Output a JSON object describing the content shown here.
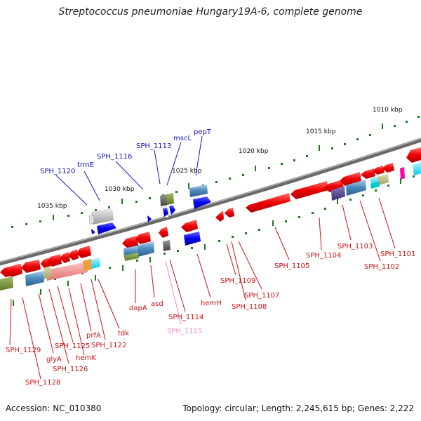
{
  "title": "Streptococcus pneumoniae Hungary19A-6, complete genome",
  "footer": {
    "accession": "Accession: NC_010380",
    "topology": "Topology: circular; Length: 2,245,615 bp; Genes: 2,222"
  },
  "colors": {
    "forward_label": "#1515c8",
    "reverse_label": "#cc1111",
    "pink_label": "#ee88cc",
    "backbone": "#6a6a6a",
    "tick": "#1a7a1a"
  },
  "kbp_markers": [
    "1010 kbp",
    "1015 kbp",
    "1020 kbp",
    "1025 kbp",
    "1030 kbp",
    "1035 kbp"
  ],
  "forward_labels": [
    "SPH_1120",
    "trmE",
    "SPH_1116",
    "SPH_1113",
    "mscL",
    "pepT"
  ],
  "reverse_labels": [
    "SPH_1129",
    "SPH_1128",
    "glyA",
    "SPH_1126",
    "SPH_1125",
    "hemK",
    "prfA",
    "SPH_1122",
    "tdk",
    "dapA",
    "asd",
    "SPH_1114",
    "SPH_1115",
    "hemH",
    "SPH_1109",
    "SPH_1108",
    "SPH_1107",
    "SPH_1105",
    "SPH_1104",
    "SPH_1103",
    "SPH_1102",
    "SPH_1101"
  ]
}
